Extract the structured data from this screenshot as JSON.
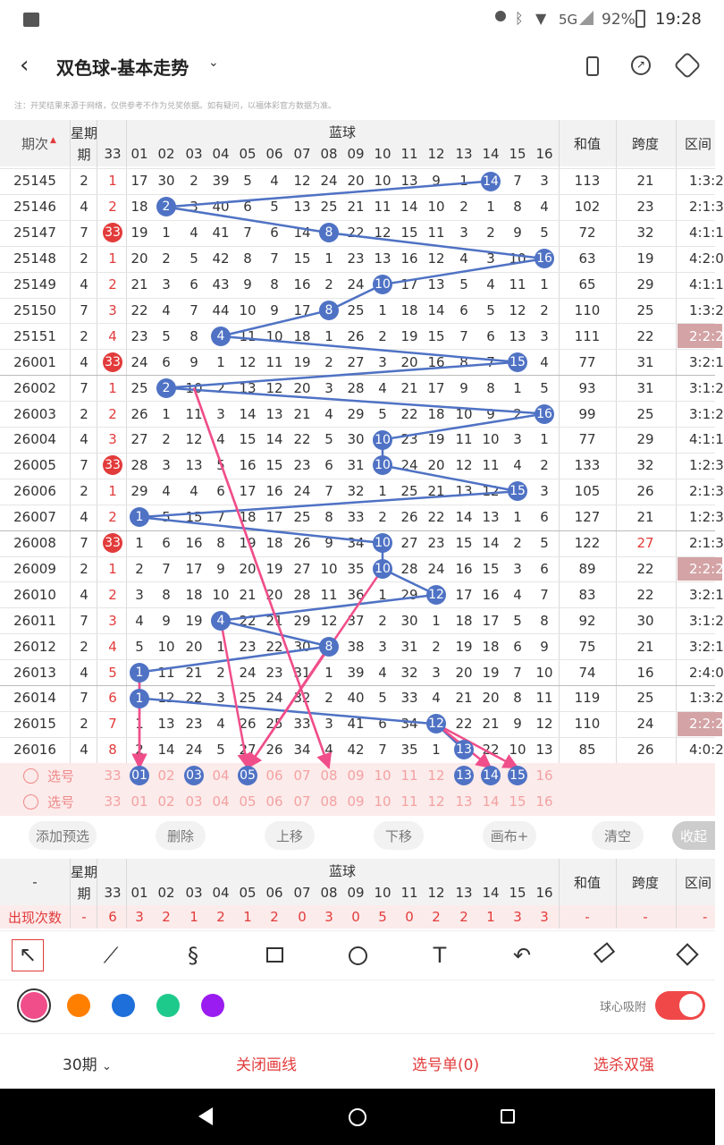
{
  "status": {
    "signal": "5G",
    "battery": "92%",
    "time": "19:28"
  },
  "title": "双色球-基本走势",
  "notice": "注：开奖结果来源于网络，仅供参考不作为兑奖依据。如有疑问，以福体彩官方数据为准。",
  "colors": {
    "blue_ball": "#4f72c4",
    "red_ball": "#e23b3b",
    "pink_line": "#f04e8a",
    "accent": "#e23b3b"
  },
  "header": {
    "period": "期次",
    "week": "星期",
    "week2": "期",
    "blue": "蓝球",
    "sum": "和值",
    "span": "跨度",
    "zone": "区间",
    "cols": [
      "33",
      "01",
      "02",
      "03",
      "04",
      "05",
      "06",
      "07",
      "08",
      "09",
      "10",
      "11",
      "12",
      "13",
      "14",
      "15",
      "16"
    ]
  },
  "rows": [
    {
      "p": "25145",
      "w": "2",
      "red": "1",
      "blue": 14,
      "v": [
        "17",
        "30",
        "2",
        "39",
        "5",
        "4",
        "12",
        "24",
        "20",
        "10",
        "13",
        "9",
        "1",
        "14",
        "7",
        "3"
      ],
      "sum": "113",
      "span": "21",
      "zone": "1:3:2"
    },
    {
      "p": "25146",
      "w": "4",
      "red": "2",
      "blue": 2,
      "v": [
        "18",
        "2",
        "3",
        "40",
        "6",
        "5",
        "13",
        "25",
        "21",
        "11",
        "14",
        "10",
        "2",
        "1",
        "8",
        "4"
      ],
      "sum": "102",
      "span": "23",
      "zone": "2:1:3"
    },
    {
      "p": "25147",
      "w": "7",
      "red": "33",
      "blue": 8,
      "v": [
        "19",
        "1",
        "4",
        "41",
        "7",
        "6",
        "14",
        "8",
        "22",
        "12",
        "15",
        "11",
        "3",
        "2",
        "9",
        "5"
      ],
      "sum": "72",
      "span": "32",
      "zone": "4:1:1"
    },
    {
      "p": "25148",
      "w": "2",
      "red": "1",
      "blue": 16,
      "v": [
        "20",
        "2",
        "5",
        "42",
        "8",
        "7",
        "15",
        "1",
        "23",
        "13",
        "16",
        "12",
        "4",
        "3",
        "10",
        "16"
      ],
      "sum": "63",
      "span": "19",
      "zone": "4:2:0"
    },
    {
      "p": "25149",
      "w": "4",
      "red": "2",
      "blue": 10,
      "v": [
        "21",
        "3",
        "6",
        "43",
        "9",
        "8",
        "16",
        "2",
        "24",
        "10",
        "17",
        "13",
        "5",
        "4",
        "11",
        "1"
      ],
      "sum": "65",
      "span": "29",
      "zone": "4:1:1"
    },
    {
      "p": "25150",
      "w": "7",
      "red": "3",
      "blue": 8,
      "v": [
        "22",
        "4",
        "7",
        "44",
        "10",
        "9",
        "17",
        "8",
        "25",
        "1",
        "18",
        "14",
        "6",
        "5",
        "12",
        "2"
      ],
      "sum": "110",
      "span": "25",
      "zone": "1:3:2"
    },
    {
      "p": "25151",
      "w": "2",
      "red": "4",
      "blue": 4,
      "v": [
        "23",
        "5",
        "8",
        "4",
        "11",
        "10",
        "18",
        "1",
        "26",
        "2",
        "19",
        "15",
        "7",
        "6",
        "13",
        "3"
      ],
      "sum": "111",
      "span": "22",
      "zone": "2:2:2"
    },
    {
      "p": "26001",
      "w": "4",
      "red": "33",
      "blue": 15,
      "v": [
        "24",
        "6",
        "9",
        "1",
        "12",
        "11",
        "19",
        "2",
        "27",
        "3",
        "20",
        "16",
        "8",
        "7",
        "15",
        "4"
      ],
      "sum": "77",
      "span": "31",
      "zone": "3:2:1"
    },
    {
      "p": "26002",
      "w": "7",
      "red": "1",
      "blue": 2,
      "v": [
        "25",
        "2",
        "10",
        "2",
        "13",
        "12",
        "20",
        "3",
        "28",
        "4",
        "21",
        "17",
        "9",
        "8",
        "1",
        "5"
      ],
      "sum": "93",
      "span": "31",
      "zone": "3:1:2"
    },
    {
      "p": "26003",
      "w": "2",
      "red": "2",
      "blue": 16,
      "v": [
        "26",
        "1",
        "11",
        "3",
        "14",
        "13",
        "21",
        "4",
        "29",
        "5",
        "22",
        "18",
        "10",
        "9",
        "2",
        "16"
      ],
      "sum": "99",
      "span": "25",
      "zone": "3:1:2"
    },
    {
      "p": "26004",
      "w": "4",
      "red": "3",
      "blue": 10,
      "v": [
        "27",
        "2",
        "12",
        "4",
        "15",
        "14",
        "22",
        "5",
        "30",
        "10",
        "23",
        "19",
        "11",
        "10",
        "3",
        "1"
      ],
      "sum": "77",
      "span": "29",
      "zone": "4:1:1"
    },
    {
      "p": "26005",
      "w": "7",
      "red": "33",
      "blue": 10,
      "v": [
        "28",
        "3",
        "13",
        "5",
        "16",
        "15",
        "23",
        "6",
        "31",
        "10",
        "24",
        "20",
        "12",
        "11",
        "4",
        "2"
      ],
      "sum": "133",
      "span": "32",
      "zone": "1:2:3"
    },
    {
      "p": "26006",
      "w": "2",
      "red": "1",
      "blue": 15,
      "v": [
        "29",
        "4",
        "4",
        "6",
        "17",
        "16",
        "24",
        "7",
        "32",
        "1",
        "25",
        "21",
        "13",
        "12",
        "15",
        "3"
      ],
      "sum": "105",
      "span": "26",
      "zone": "2:1:3"
    },
    {
      "p": "26007",
      "w": "4",
      "red": "2",
      "blue": 1,
      "v": [
        "1",
        "5",
        "15",
        "7",
        "18",
        "17",
        "25",
        "8",
        "33",
        "2",
        "26",
        "22",
        "14",
        "13",
        "1",
        "6"
      ],
      "sum": "127",
      "span": "21",
      "zone": "1:2:3"
    },
    {
      "p": "26008",
      "w": "7",
      "red": "33",
      "blue": 10,
      "v": [
        "1",
        "6",
        "16",
        "8",
        "19",
        "18",
        "26",
        "9",
        "34",
        "10",
        "27",
        "23",
        "15",
        "14",
        "2",
        "5"
      ],
      "sum": "122",
      "span": "27",
      "zone": "2:1:3"
    },
    {
      "p": "26009",
      "w": "2",
      "red": "1",
      "blue": 10,
      "v": [
        "2",
        "7",
        "17",
        "9",
        "20",
        "19",
        "27",
        "10",
        "35",
        "10",
        "28",
        "24",
        "16",
        "15",
        "3",
        "6"
      ],
      "sum": "89",
      "span": "22",
      "zone": "2:2:2"
    },
    {
      "p": "26010",
      "w": "4",
      "red": "2",
      "blue": 12,
      "v": [
        "3",
        "8",
        "18",
        "10",
        "21",
        "20",
        "28",
        "11",
        "36",
        "1",
        "29",
        "12",
        "17",
        "16",
        "4",
        "7"
      ],
      "sum": "83",
      "span": "22",
      "zone": "3:2:1"
    },
    {
      "p": "26011",
      "w": "7",
      "red": "3",
      "blue": 4,
      "v": [
        "4",
        "9",
        "19",
        "4",
        "22",
        "21",
        "29",
        "12",
        "37",
        "2",
        "30",
        "1",
        "18",
        "17",
        "5",
        "8"
      ],
      "sum": "92",
      "span": "30",
      "zone": "3:1:2"
    },
    {
      "p": "26012",
      "w": "2",
      "red": "4",
      "blue": 8,
      "v": [
        "5",
        "10",
        "20",
        "1",
        "23",
        "22",
        "30",
        "8",
        "38",
        "3",
        "31",
        "2",
        "19",
        "18",
        "6",
        "9"
      ],
      "sum": "75",
      "span": "21",
      "zone": "3:2:1"
    },
    {
      "p": "26013",
      "w": "4",
      "red": "5",
      "blue": 1,
      "v": [
        "1",
        "11",
        "21",
        "2",
        "24",
        "23",
        "31",
        "1",
        "39",
        "4",
        "32",
        "3",
        "20",
        "19",
        "7",
        "10"
      ],
      "sum": "74",
      "span": "16",
      "zone": "2:4:0"
    },
    {
      "p": "26014",
      "w": "7",
      "red": "6",
      "blue": 1,
      "v": [
        "1",
        "12",
        "22",
        "3",
        "25",
        "24",
        "32",
        "2",
        "40",
        "5",
        "33",
        "4",
        "21",
        "20",
        "8",
        "11"
      ],
      "sum": "119",
      "span": "25",
      "zone": "1:3:2"
    },
    {
      "p": "26015",
      "w": "2",
      "red": "7",
      "blue": 12,
      "v": [
        "1",
        "13",
        "23",
        "4",
        "26",
        "25",
        "33",
        "3",
        "41",
        "6",
        "34",
        "12",
        "22",
        "21",
        "9",
        "12"
      ],
      "sum": "110",
      "span": "24",
      "zone": "2:2:2"
    },
    {
      "p": "26016",
      "w": "4",
      "red": "8",
      "blue": 13,
      "v": [
        "2",
        "14",
        "24",
        "5",
        "27",
        "26",
        "34",
        "4",
        "42",
        "7",
        "35",
        "1",
        "13",
        "22",
        "10",
        "13"
      ],
      "sum": "85",
      "span": "26",
      "zone": "4:0:2"
    }
  ],
  "select_rows": [
    {
      "label": "选号",
      "selected": [
        1,
        3,
        5,
        13,
        14,
        15
      ]
    },
    {
      "label": "选号",
      "selected": []
    }
  ],
  "actions": {
    "add": "添加预选",
    "del": "删除",
    "up": "上移",
    "down": "下移",
    "canvas": "画布+",
    "clear": "清空",
    "collapse": "收起"
  },
  "stats": {
    "dash": "-",
    "label": "出现次数",
    "counts": [
      "6",
      "3",
      "2",
      "1",
      "2",
      "1",
      "2",
      "0",
      "3",
      "0",
      "5",
      "0",
      "2",
      "2",
      "1",
      "3",
      "3"
    ],
    "sum": "-",
    "span": "-",
    "zone": "-"
  },
  "draw_tools": [
    "arrow-tool",
    "line-tool",
    "curve-tool",
    "rect-tool",
    "circle-tool",
    "text-tool",
    "undo-tool",
    "eraser-tool",
    "brush-tool"
  ],
  "palette": [
    "#f04e8a",
    "#ff7f00",
    "#1e6fd9",
    "#1ec98c",
    "#9a1cf0"
  ],
  "snap_label": "球心吸附",
  "bottom": {
    "periods": "30期",
    "close_draw": "关闭画线",
    "select_list": "选号单(0)",
    "kill": "选杀双强"
  }
}
